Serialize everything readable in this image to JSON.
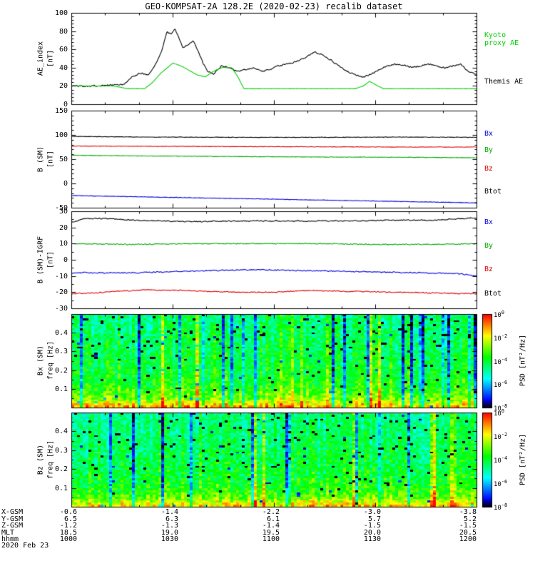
{
  "title": "GEO-KOMPSAT-2A 128.2E (2020-02-23) recalib dataset",
  "date_label": "2020 Feb 23",
  "colors": {
    "axis": "#000000",
    "bx": "#0000dd",
    "by": "#00aa00",
    "bz": "#dd0000",
    "btot": "#000000",
    "kyoto_proxy_ae": "#00cc00",
    "themis_ae": "#000000"
  },
  "ephemeris": {
    "rows": [
      {
        "label": "X-GSM",
        "values": [
          "-0.6",
          "-1.4",
          "-2.2",
          "-3.0",
          "-3.8"
        ]
      },
      {
        "label": "Y-GSM",
        "values": [
          "6.5",
          "6.3",
          "6.1",
          "5.7",
          "5.2"
        ]
      },
      {
        "label": "Z-GSM",
        "values": [
          "-1.2",
          "-1.3",
          "-1.4",
          "-1.5",
          "-1.5"
        ]
      },
      {
        "label": "MLT",
        "values": [
          "18.5",
          "19.0",
          "19.5",
          "20.0",
          "20.5"
        ]
      },
      {
        "label": "hhmm",
        "values": [
          "1000",
          "1030",
          "1100",
          "1130",
          "1200"
        ]
      }
    ]
  },
  "chart_data": [
    {
      "type": "line",
      "title": "AE index",
      "ylabel": "AE_index",
      "yunit": "[nT]",
      "ylim": [
        0,
        100
      ],
      "yticks": [
        0,
        20,
        40,
        60,
        80,
        100
      ],
      "yminor": 4,
      "x_range_hhmm": [
        "1000",
        "1200"
      ],
      "series": [
        {
          "name": "Themis AE",
          "color": "#000000",
          "jitter": 1.0,
          "points": [
            [
              0,
              20
            ],
            [
              0.05,
              20
            ],
            [
              0.1,
              21
            ],
            [
              0.13,
              22
            ],
            [
              0.15,
              30
            ],
            [
              0.17,
              34
            ],
            [
              0.19,
              32
            ],
            [
              0.21,
              46
            ],
            [
              0.225,
              62
            ],
            [
              0.235,
              80
            ],
            [
              0.245,
              76
            ],
            [
              0.255,
              82
            ],
            [
              0.265,
              72
            ],
            [
              0.275,
              62
            ],
            [
              0.29,
              66
            ],
            [
              0.3,
              70
            ],
            [
              0.31,
              60
            ],
            [
              0.325,
              44
            ],
            [
              0.335,
              36
            ],
            [
              0.35,
              33
            ],
            [
              0.37,
              42
            ],
            [
              0.39,
              40
            ],
            [
              0.41,
              36
            ],
            [
              0.43,
              38
            ],
            [
              0.45,
              40
            ],
            [
              0.47,
              36
            ],
            [
              0.49,
              38
            ],
            [
              0.51,
              42
            ],
            [
              0.53,
              44
            ],
            [
              0.55,
              46
            ],
            [
              0.57,
              50
            ],
            [
              0.6,
              57
            ],
            [
              0.62,
              54
            ],
            [
              0.64,
              48
            ],
            [
              0.66,
              42
            ],
            [
              0.68,
              36
            ],
            [
              0.7,
              32
            ],
            [
              0.72,
              30
            ],
            [
              0.74,
              33
            ],
            [
              0.76,
              38
            ],
            [
              0.78,
              42
            ],
            [
              0.8,
              44
            ],
            [
              0.82,
              43
            ],
            [
              0.84,
              40
            ],
            [
              0.86,
              42
            ],
            [
              0.88,
              44
            ],
            [
              0.9,
              42
            ],
            [
              0.92,
              40
            ],
            [
              0.94,
              42
            ],
            [
              0.96,
              44
            ],
            [
              0.98,
              35
            ],
            [
              1,
              33
            ]
          ]
        },
        {
          "name": "Kyoto proxy AE",
          "color": "#00cc00",
          "jitter": 0.2,
          "points": [
            [
              0,
              20
            ],
            [
              0.1,
              20
            ],
            [
              0.14,
              17
            ],
            [
              0.18,
              17
            ],
            [
              0.2,
              24
            ],
            [
              0.22,
              34
            ],
            [
              0.25,
              45
            ],
            [
              0.27,
              42
            ],
            [
              0.29,
              37
            ],
            [
              0.31,
              32
            ],
            [
              0.33,
              30
            ],
            [
              0.35,
              36
            ],
            [
              0.37,
              40
            ],
            [
              0.395,
              40
            ],
            [
              0.41,
              30
            ],
            [
              0.425,
              17
            ],
            [
              0.6,
              17
            ],
            [
              0.7,
              17
            ],
            [
              0.72,
              20
            ],
            [
              0.735,
              25
            ],
            [
              0.755,
              20
            ],
            [
              0.77,
              17
            ],
            [
              1,
              17
            ]
          ]
        }
      ],
      "legend": [
        {
          "label": "Kyoto proxy AE",
          "color": "#00cc00"
        },
        {
          "label": "Themis AE",
          "color": "#000000"
        }
      ]
    },
    {
      "type": "line",
      "title": "B (SM)",
      "ylabel": "B (SM)",
      "yunit": "[nT]",
      "ylim": [
        -50,
        150
      ],
      "yticks": [
        -50,
        0,
        50,
        100,
        150
      ],
      "yminor": 4,
      "series": [
        {
          "name": "Btot",
          "color": "#000000",
          "jitter": 0.5,
          "points": [
            [
              0,
              97
            ],
            [
              0.1,
              96
            ],
            [
              0.2,
              95.5
            ],
            [
              0.35,
              95
            ],
            [
              0.5,
              95
            ],
            [
              0.65,
              95
            ],
            [
              0.8,
              95.5
            ],
            [
              1,
              95
            ]
          ]
        },
        {
          "name": "Bz",
          "color": "#dd0000",
          "jitter": 0.5,
          "points": [
            [
              0,
              77
            ],
            [
              0.2,
              76.5
            ],
            [
              0.4,
              76
            ],
            [
              0.6,
              75.5
            ],
            [
              0.8,
              75
            ],
            [
              1,
              75
            ]
          ]
        },
        {
          "name": "By",
          "color": "#00aa00",
          "jitter": 0.5,
          "points": [
            [
              0,
              58
            ],
            [
              0.2,
              56.5
            ],
            [
              0.4,
              55.5
            ],
            [
              0.6,
              54.5
            ],
            [
              0.8,
              54
            ],
            [
              1,
              53
            ]
          ]
        },
        {
          "name": "Bx",
          "color": "#0000dd",
          "jitter": 0.5,
          "points": [
            [
              0,
              -25
            ],
            [
              0.2,
              -28
            ],
            [
              0.4,
              -31
            ],
            [
              0.6,
              -34
            ],
            [
              0.8,
              -37
            ],
            [
              1,
              -40
            ]
          ]
        }
      ],
      "legend": [
        {
          "label": "Bx",
          "color": "#0000dd"
        },
        {
          "label": "By",
          "color": "#00aa00"
        },
        {
          "label": "Bz",
          "color": "#dd0000"
        },
        {
          "label": "Btot",
          "color": "#000000"
        }
      ]
    },
    {
      "type": "line",
      "title": "B (SM) - IGRF",
      "ylabel": "B (SM)-IGRF",
      "yunit": "[nT]",
      "ylim": [
        -30,
        30
      ],
      "yticks": [
        -30,
        -20,
        -10,
        0,
        10,
        20,
        30
      ],
      "yminor": 1,
      "series": [
        {
          "name": "Btot",
          "color": "#000000",
          "jitter": 0.4,
          "points": [
            [
              0,
              23
            ],
            [
              0.03,
              25.5
            ],
            [
              0.08,
              25.5
            ],
            [
              0.15,
              24.5
            ],
            [
              0.22,
              24
            ],
            [
              0.3,
              23.5
            ],
            [
              0.4,
              24
            ],
            [
              0.5,
              24
            ],
            [
              0.6,
              24
            ],
            [
              0.7,
              24
            ],
            [
              0.8,
              24.5
            ],
            [
              0.9,
              24.5
            ],
            [
              0.97,
              25.5
            ],
            [
              1,
              26
            ]
          ]
        },
        {
          "name": "By",
          "color": "#00aa00",
          "jitter": 0.4,
          "points": [
            [
              0,
              10
            ],
            [
              0.15,
              9.5
            ],
            [
              0.3,
              10
            ],
            [
              0.45,
              10
            ],
            [
              0.6,
              10
            ],
            [
              0.75,
              9.5
            ],
            [
              0.9,
              9.5
            ],
            [
              1,
              10
            ]
          ]
        },
        {
          "name": "Bx",
          "color": "#0000dd",
          "jitter": 0.4,
          "points": [
            [
              0,
              -8
            ],
            [
              0.15,
              -8
            ],
            [
              0.3,
              -7
            ],
            [
              0.45,
              -6
            ],
            [
              0.55,
              -6.5
            ],
            [
              0.65,
              -7
            ],
            [
              0.75,
              -7.5
            ],
            [
              0.85,
              -8
            ],
            [
              0.95,
              -8.5
            ],
            [
              1,
              -10
            ]
          ]
        },
        {
          "name": "Bz",
          "color": "#dd0000",
          "jitter": 0.4,
          "points": [
            [
              0,
              -21
            ],
            [
              0.08,
              -20
            ],
            [
              0.18,
              -18.5
            ],
            [
              0.28,
              -19
            ],
            [
              0.4,
              -20
            ],
            [
              0.5,
              -20
            ],
            [
              0.58,
              -19
            ],
            [
              0.68,
              -19.5
            ],
            [
              0.8,
              -20
            ],
            [
              0.9,
              -20.5
            ],
            [
              1,
              -21
            ]
          ]
        }
      ],
      "legend": [
        {
          "label": "Bx",
          "color": "#0000dd"
        },
        {
          "label": "By",
          "color": "#00aa00"
        },
        {
          "label": "Bz",
          "color": "#dd0000"
        },
        {
          "label": "Btot",
          "color": "#000000"
        }
      ]
    },
    {
      "type": "heatmap",
      "title": "Bx (SM) dynamic power spectrum",
      "ylabel": "Bx (SM)",
      "yunit": "freq [Hz]",
      "ylim": [
        0,
        0.5
      ],
      "yticks": [
        0.1,
        0.2,
        0.3,
        0.4
      ],
      "yminor": 1,
      "colorbar": {
        "label": "PSD [nT²/Hz]",
        "tick_exponents": [
          0,
          -2,
          -4,
          -6,
          -8
        ],
        "log10_range": [
          -8,
          0
        ]
      },
      "spectrum": {
        "seed": 11,
        "base_log10_psd": -3.6,
        "low_freq_peak_log10": -1.0,
        "low_freq_scale_hz": 0.05,
        "time_bins": 140,
        "freq_bins": 46,
        "description": "Broadband noise: green background near 1e-4 nT2/Hz, yellow-orange power enhancement below ~0.05 Hz, vertical bright (yellow) and dark (blue/black) streaks spanning all frequencies"
      }
    },
    {
      "type": "heatmap",
      "title": "Bz (SM) dynamic power spectrum",
      "ylabel": "Bz (SM)",
      "yunit": "freq [Hz]",
      "ylim": [
        0,
        0.5
      ],
      "yticks": [
        0.1,
        0.2,
        0.3,
        0.4
      ],
      "yminor": 1,
      "colorbar": {
        "label": "PSD [nT²/Hz]",
        "tick_exponents": [
          0,
          -2,
          -4,
          -6,
          -8
        ],
        "log10_range": [
          -8,
          0
        ]
      },
      "spectrum": {
        "seed": 29,
        "base_log10_psd": -3.7,
        "low_freq_peak_log10": -1.3,
        "low_freq_scale_hz": 0.05,
        "time_bins": 140,
        "freq_bins": 46,
        "description": "Broadband noise: green background near 1e-4 nT2/Hz, weaker yellow enhancement at lowest frequencies, vertical bright and dark streaks"
      }
    }
  ]
}
